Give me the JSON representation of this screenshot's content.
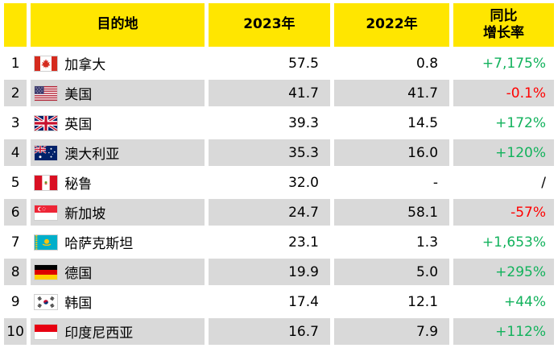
{
  "colors": {
    "header_bg": "#FFE600",
    "row_alt_bg": "#D9D9D9",
    "positive": "#12B25C",
    "negative": "#FF0000",
    "neutral": "#000000"
  },
  "table": {
    "header": {
      "rank": "",
      "destination": "目的地",
      "y2023": "2023年",
      "y2022": "2022年",
      "growth_line1": "同比",
      "growth_line2": "增长率"
    },
    "rows": [
      {
        "rank": "1",
        "flag": "canada",
        "destination": "加拿大",
        "y2023": "57.5",
        "y2022": "0.8",
        "growth": "+7,175%",
        "growth_color": "positive"
      },
      {
        "rank": "2",
        "flag": "usa",
        "destination": "美国",
        "y2023": "41.7",
        "y2022": "41.7",
        "growth": "-0.1%",
        "growth_color": "negative"
      },
      {
        "rank": "3",
        "flag": "uk",
        "destination": "英国",
        "y2023": "39.3",
        "y2022": "14.5",
        "growth": "+172%",
        "growth_color": "positive"
      },
      {
        "rank": "4",
        "flag": "australia",
        "destination": "澳大利亚",
        "y2023": "35.3",
        "y2022": "16.0",
        "growth": "+120%",
        "growth_color": "positive"
      },
      {
        "rank": "5",
        "flag": "peru",
        "destination": "秘鲁",
        "y2023": "32.0",
        "y2022": "-",
        "growth": "/",
        "growth_color": "neutral"
      },
      {
        "rank": "6",
        "flag": "singapore",
        "destination": "新加坡",
        "y2023": "24.7",
        "y2022": "58.1",
        "growth": "-57%",
        "growth_color": "negative"
      },
      {
        "rank": "7",
        "flag": "kazakhstan",
        "destination": "哈萨克斯坦",
        "y2023": "23.1",
        "y2022": "1.3",
        "growth": "+1,653%",
        "growth_color": "positive"
      },
      {
        "rank": "8",
        "flag": "germany",
        "destination": "德国",
        "y2023": "19.9",
        "y2022": "5.0",
        "growth": "+295%",
        "growth_color": "positive"
      },
      {
        "rank": "9",
        "flag": "south-korea",
        "destination": "韩国",
        "y2023": "17.4",
        "y2022": "12.1",
        "growth": "+44%",
        "growth_color": "positive"
      },
      {
        "rank": "10",
        "flag": "indonesia",
        "destination": "印度尼西亚",
        "y2023": "16.7",
        "y2022": "7.9",
        "growth": "+112%",
        "growth_color": "positive"
      }
    ]
  },
  "chart_data": {
    "type": "table",
    "title": "",
    "columns": [
      "",
      "目的地",
      "2023年",
      "2022年",
      "同比增长率"
    ],
    "rows": [
      {
        "rank": 1,
        "destination": "加拿大",
        "y2023": 57.5,
        "y2022": 0.8,
        "yoy_growth": "+7,175%"
      },
      {
        "rank": 2,
        "destination": "美国",
        "y2023": 41.7,
        "y2022": 41.7,
        "yoy_growth": "-0.1%"
      },
      {
        "rank": 3,
        "destination": "英国",
        "y2023": 39.3,
        "y2022": 14.5,
        "yoy_growth": "+172%"
      },
      {
        "rank": 4,
        "destination": "澳大利亚",
        "y2023": 35.3,
        "y2022": 16.0,
        "yoy_growth": "+120%"
      },
      {
        "rank": 5,
        "destination": "秘鲁",
        "y2023": 32.0,
        "y2022": null,
        "yoy_growth": "/"
      },
      {
        "rank": 6,
        "destination": "新加坡",
        "y2023": 24.7,
        "y2022": 58.1,
        "yoy_growth": "-57%"
      },
      {
        "rank": 7,
        "destination": "哈萨克斯坦",
        "y2023": 23.1,
        "y2022": 1.3,
        "yoy_growth": "+1,653%"
      },
      {
        "rank": 8,
        "destination": "德国",
        "y2023": 19.9,
        "y2022": 5.0,
        "yoy_growth": "+295%"
      },
      {
        "rank": 9,
        "destination": "韩国",
        "y2023": 17.4,
        "y2022": 12.1,
        "yoy_growth": "+44%"
      },
      {
        "rank": 10,
        "destination": "印度尼西亚",
        "y2023": 16.7,
        "y2022": 7.9,
        "yoy_growth": "+112%"
      }
    ],
    "notes": "values shown to one decimal; growth column colored green for positive, red for negative, black slash when no prior-year value"
  }
}
